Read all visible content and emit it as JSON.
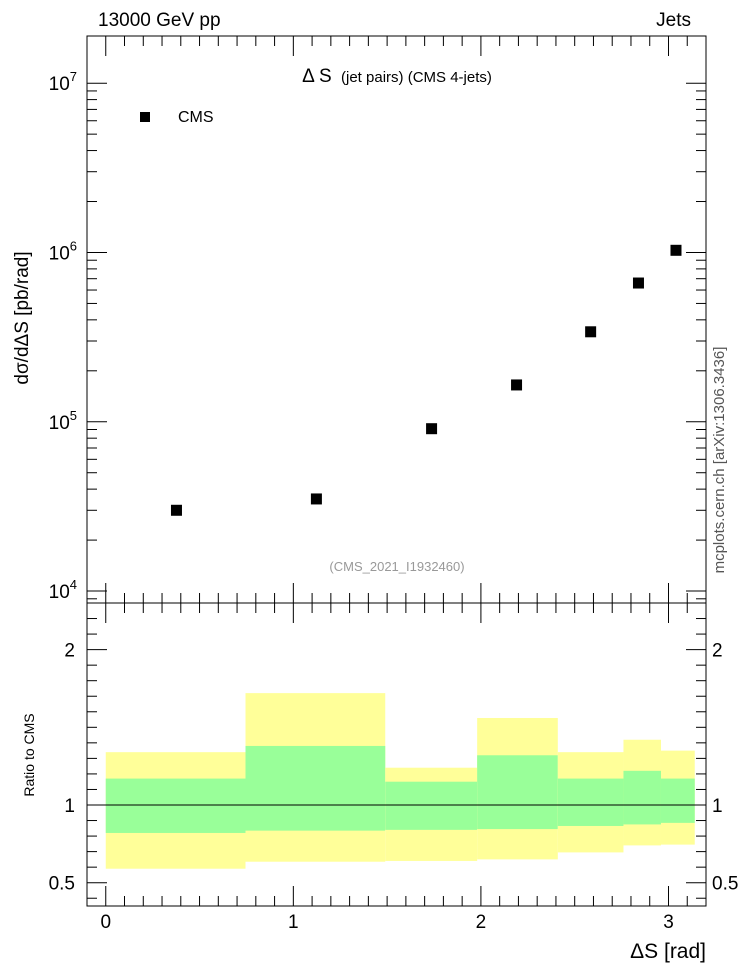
{
  "header": {
    "left": "13000 GeV pp",
    "right": "Jets"
  },
  "side_label": "mcplots.cern.ch [arXiv:1306.3436]",
  "chart_data": [
    {
      "type": "scatter",
      "title": "Δ S",
      "title_suffix": "(jet pairs) (CMS 4-jets)",
      "watermark": "(CMS_2021_I1932460)",
      "ylabel": "dσ/dΔS [pb/rad]",
      "yscale": "log",
      "xlim": [
        -0.1,
        3.2
      ],
      "ylim": [
        8500,
        19000000
      ],
      "y_ticks": [
        {
          "base": "10",
          "exp": "4",
          "value": 10000
        },
        {
          "base": "10",
          "exp": "5",
          "value": 100000
        },
        {
          "base": "10",
          "exp": "6",
          "value": 1000000
        },
        {
          "base": "10",
          "exp": "7",
          "value": 10000000
        }
      ],
      "legend": {
        "entries": [
          "CMS"
        ],
        "placement": "top-left"
      },
      "series": [
        {
          "name": "CMS",
          "x": [
            0.377,
            1.123,
            1.737,
            2.19,
            2.585,
            2.84,
            3.04
          ],
          "y": [
            30000,
            35000,
            91000,
            165000,
            340000,
            660000,
            1030000
          ]
        }
      ]
    },
    {
      "type": "area",
      "ylabel": "Ratio to CMS",
      "xlabel": "ΔS [rad]",
      "xlim": [
        -0.1,
        3.2
      ],
      "ylim": [
        0.35,
        2.3
      ],
      "x_ticks": [
        "0",
        "1",
        "2",
        "3"
      ],
      "y_ticks": [
        "0.5",
        "1",
        "2"
      ],
      "reference_line": 1,
      "bins": [
        {
          "x_low": 0.0,
          "x_high": 0.745,
          "yellow": [
            0.59,
            1.34
          ],
          "green": [
            0.82,
            1.17
          ]
        },
        {
          "x_low": 0.745,
          "x_high": 1.49,
          "yellow": [
            0.635,
            1.72
          ],
          "green": [
            0.835,
            1.38
          ]
        },
        {
          "x_low": 1.49,
          "x_high": 1.98,
          "yellow": [
            0.64,
            1.24
          ],
          "green": [
            0.84,
            1.15
          ]
        },
        {
          "x_low": 1.98,
          "x_high": 2.41,
          "yellow": [
            0.65,
            1.56
          ],
          "green": [
            0.845,
            1.32
          ]
        },
        {
          "x_low": 2.41,
          "x_high": 2.76,
          "yellow": [
            0.695,
            1.34
          ],
          "green": [
            0.865,
            1.17
          ]
        },
        {
          "x_low": 2.76,
          "x_high": 2.96,
          "yellow": [
            0.74,
            1.42
          ],
          "green": [
            0.875,
            1.22
          ]
        },
        {
          "x_low": 2.96,
          "x_high": 3.14,
          "yellow": [
            0.745,
            1.35
          ],
          "green": [
            0.885,
            1.17
          ]
        }
      ],
      "colors": {
        "yellow": "#ffff99",
        "green": "#99ff99"
      }
    }
  ]
}
